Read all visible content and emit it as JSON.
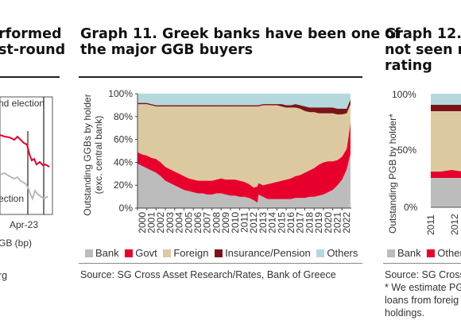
{
  "left_panel": {
    "title_lines": [
      "rformed",
      "st-round"
    ],
    "annotations": [
      "nd election",
      "ection"
    ],
    "xtick": "Apr-23",
    "legend": "GB (bp)",
    "source": "rg",
    "colors": {
      "line_red": "#e8002d",
      "line_gray": "#b9b9b9"
    }
  },
  "main_panel": {
    "title_lines": [
      "Graph 11. Greek banks have been one of",
      "the major GGB buyers"
    ],
    "source": "Source: SG Cross Asset Research/Rates, Bank of Greece"
  },
  "right_panel": {
    "title_lines": [
      "Graph 12.",
      "not  seen  n",
      "rating"
    ],
    "ylabel": "Outstanding PGB by holder*",
    "yticks": [
      "100%",
      "50%",
      "0%"
    ],
    "xticks": [
      "2011",
      "2012"
    ],
    "legend": [
      "Bank",
      "Other I"
    ],
    "source_lines": [
      "Source: SG Cross",
      "* We estimate PG",
      "loans from foreig",
      "holdings."
    ]
  },
  "chart_data": {
    "type": "area",
    "stacked": true,
    "ylabel": "Outstanding GGBs by holder (exc. central bank)",
    "yticks": [
      "0%",
      "20%",
      "40%",
      "60%",
      "80%",
      "100%"
    ],
    "ylim": [
      0,
      100
    ],
    "xticks": [
      "2000",
      "2001",
      "2002",
      "2003",
      "2004",
      "2005",
      "2006",
      "2007",
      "2008",
      "2009",
      "2010",
      "2011",
      "2012",
      "2013",
      "2014",
      "2015",
      "2016",
      "2017",
      "2018",
      "2019",
      "2020",
      "2021",
      "2022"
    ],
    "grid": false,
    "legend_position": "bottom",
    "x": [
      2000.0,
      2000.5,
      2001.0,
      2001.5,
      2002.0,
      2002.5,
      2003.0,
      2003.5,
      2004.0,
      2004.5,
      2005.0,
      2005.5,
      2006.0,
      2006.5,
      2007.0,
      2007.5,
      2008.0,
      2008.5,
      2009.0,
      2009.5,
      2010.0,
      2010.5,
      2011.0,
      2011.5,
      2012.0,
      2012.5,
      2012.9,
      2013.0,
      2013.5,
      2014.0,
      2014.5,
      2015.0,
      2015.5,
      2016.0,
      2016.5,
      2017.0,
      2017.5,
      2018.0,
      2018.5,
      2019.0,
      2019.5,
      2020.0,
      2020.5,
      2021.0,
      2021.5,
      2022.0,
      2022.5,
      2022.9
    ],
    "series": [
      {
        "name": "Bank",
        "color": "#bcbcbc",
        "values": [
          39,
          37,
          35,
          33,
          31,
          28,
          24,
          22,
          20,
          18,
          16,
          15,
          14,
          13,
          13,
          12,
          12,
          13,
          13,
          12,
          11,
          11,
          10,
          10,
          9,
          7,
          5,
          12,
          10,
          8,
          8,
          8,
          8,
          8,
          8,
          9,
          9,
          9,
          10,
          10,
          11,
          12,
          14,
          16,
          20,
          25,
          34,
          48
        ]
      },
      {
        "name": "Govt",
        "color": "#e8002d",
        "values": [
          10,
          10,
          11,
          11,
          12,
          12,
          12,
          12,
          12,
          12,
          12,
          11,
          11,
          11,
          11,
          12,
          12,
          12,
          13,
          13,
          14,
          14,
          14,
          13,
          12,
          11,
          14,
          10,
          10,
          13,
          14,
          15,
          16,
          17,
          18,
          19,
          20,
          22,
          23,
          25,
          27,
          28,
          27,
          25,
          22,
          20,
          18,
          26
        ]
      },
      {
        "name": "Foreign",
        "color": "#ddc9a0",
        "values": [
          42,
          44,
          45,
          46,
          46,
          49,
          53,
          55,
          57,
          59,
          61,
          63,
          64,
          65,
          65,
          65,
          65,
          64,
          63,
          64,
          64,
          64,
          65,
          66,
          68,
          71,
          70,
          67,
          70,
          69,
          68,
          67,
          65,
          63,
          62,
          60,
          58,
          54,
          51,
          49,
          45,
          43,
          42,
          42,
          40,
          37,
          31,
          17
        ]
      },
      {
        "name": "Insurance/Pension",
        "color": "#7a1418",
        "values": [
          1,
          1,
          1,
          1,
          1,
          1,
          1,
          1,
          1,
          1,
          1,
          1,
          1,
          1,
          1,
          1,
          1,
          1,
          1,
          1,
          1,
          1,
          1,
          1,
          1,
          1,
          1,
          1,
          1,
          1,
          1,
          1,
          2,
          2,
          2,
          3,
          3,
          4,
          4,
          4,
          5,
          5,
          5,
          5,
          5,
          5,
          4,
          4
        ]
      },
      {
        "name": "Others",
        "color": "#b4d8dc",
        "values": [
          8,
          8,
          8,
          9,
          10,
          10,
          10,
          10,
          10,
          10,
          10,
          10,
          10,
          10,
          10,
          10,
          10,
          10,
          10,
          10,
          10,
          10,
          10,
          10,
          10,
          10,
          10,
          10,
          9,
          9,
          9,
          9,
          9,
          10,
          10,
          9,
          10,
          11,
          12,
          12,
          12,
          12,
          12,
          12,
          13,
          13,
          13,
          5
        ]
      }
    ]
  }
}
